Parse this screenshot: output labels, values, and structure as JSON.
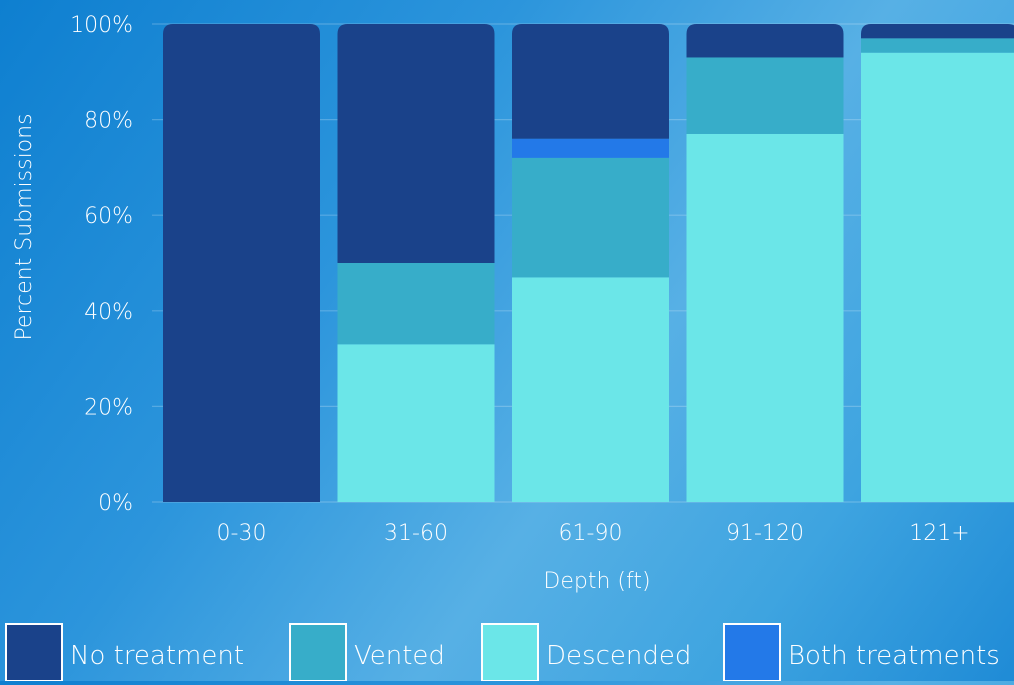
{
  "chart_data": {
    "type": "bar",
    "stacked": true,
    "title": "",
    "xlabel": "Depth (ft)",
    "ylabel": "Percent Submissions",
    "categories": [
      "0-30",
      "31-60",
      "61-90",
      "91-120",
      "121+"
    ],
    "ylim": [
      0,
      100
    ],
    "yticks": [
      "0%",
      "20%",
      "40%",
      "60%",
      "80%",
      "100%"
    ],
    "grid": true,
    "legend_position": "bottom",
    "series": [
      {
        "name": "Descended",
        "color": "#6be6e8",
        "values": [
          0,
          33,
          47,
          77,
          94
        ]
      },
      {
        "name": "Vented",
        "color": "#37adc9",
        "values": [
          0,
          17,
          25,
          16,
          3
        ]
      },
      {
        "name": "Both treatments",
        "color": "#2379e8",
        "values": [
          0,
          0,
          4,
          0,
          0
        ]
      },
      {
        "name": "No treatment",
        "color": "#1a428a",
        "values": [
          100,
          50,
          24,
          7,
          3
        ]
      }
    ],
    "legend_order": [
      "No treatment",
      "Vented",
      "Descended",
      "Both treatments"
    ]
  }
}
